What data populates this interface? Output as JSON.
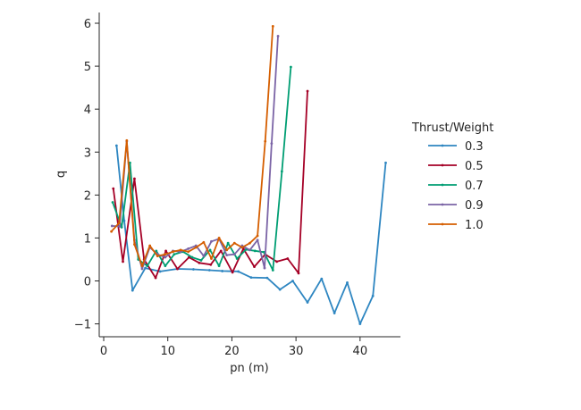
{
  "chart_data": {
    "type": "line",
    "xlabel": "pn (m)",
    "ylabel": "q",
    "xlim": [
      -0.7,
      46.3
    ],
    "ylim": [
      -1.3,
      6.25
    ],
    "xticks": [
      0,
      10,
      20,
      30,
      40
    ],
    "yticks": [
      -1,
      0,
      1,
      2,
      3,
      4,
      5,
      6
    ],
    "grid": false,
    "legend": {
      "title": "Thrust/Weight",
      "placement": "right"
    },
    "series": [
      {
        "name": "0.3",
        "color": "#2e86c1",
        "x": [
          2.0,
          3.2,
          4.5,
          6.5,
          8.8,
          11.5,
          14.0,
          16.5,
          18.5,
          21.0,
          23.0,
          25.5,
          27.5,
          29.5,
          31.8,
          34.0,
          36.0,
          38.0,
          40.0,
          42.0,
          44.0
        ],
        "y": [
          3.15,
          1.4,
          -0.22,
          0.3,
          0.22,
          0.28,
          0.27,
          0.25,
          0.23,
          0.22,
          0.08,
          0.07,
          -0.2,
          0.0,
          -0.5,
          0.05,
          -0.75,
          -0.04,
          -1.0,
          -0.35,
          2.75
        ]
      },
      {
        "name": "0.5",
        "color": "#a50026",
        "x": [
          1.5,
          3.0,
          4.8,
          6.3,
          8.1,
          9.7,
          11.5,
          13.3,
          14.9,
          16.7,
          18.3,
          20.1,
          21.8,
          23.5,
          25.2,
          27.0,
          28.7,
          30.4,
          31.8
        ],
        "y": [
          2.15,
          0.45,
          2.38,
          0.5,
          0.07,
          0.7,
          0.28,
          0.55,
          0.42,
          0.38,
          0.7,
          0.2,
          0.75,
          0.33,
          0.62,
          0.45,
          0.52,
          0.18,
          4.42
        ]
      },
      {
        "name": "0.7",
        "color": "#009e73",
        "x": [
          1.4,
          2.8,
          4.1,
          5.4,
          6.8,
          8.2,
          9.6,
          11.0,
          12.4,
          13.8,
          15.2,
          16.6,
          18.0,
          19.4,
          20.8,
          22.2,
          23.6,
          25.0,
          26.4,
          27.8,
          29.2
        ],
        "y": [
          1.83,
          1.25,
          2.75,
          0.5,
          0.35,
          0.7,
          0.35,
          0.62,
          0.68,
          0.55,
          0.48,
          0.72,
          0.35,
          0.88,
          0.52,
          0.73,
          0.7,
          0.67,
          0.25,
          2.55,
          4.98
        ]
      },
      {
        "name": "0.9",
        "color": "#7b64a6",
        "x": [
          1.3,
          2.5,
          3.6,
          4.8,
          6.0,
          7.2,
          8.4,
          9.6,
          10.8,
          12.0,
          13.2,
          14.4,
          15.6,
          16.8,
          18.0,
          19.2,
          20.4,
          21.6,
          22.8,
          24.0,
          25.1,
          26.2,
          27.2
        ],
        "y": [
          1.28,
          1.27,
          3.25,
          0.95,
          0.28,
          0.78,
          0.62,
          0.55,
          0.7,
          0.68,
          0.75,
          0.82,
          0.58,
          0.92,
          0.98,
          0.6,
          0.62,
          0.82,
          0.72,
          0.95,
          0.3,
          3.2,
          5.7
        ]
      },
      {
        "name": "1.0",
        "color": "#d55e00",
        "x": [
          1.2,
          2.4,
          3.6,
          4.8,
          6.0,
          7.2,
          8.4,
          9.6,
          10.8,
          12.0,
          13.2,
          14.4,
          15.6,
          16.8,
          18.0,
          19.2,
          20.4,
          21.6,
          22.8,
          24.0,
          25.2,
          26.4
        ],
        "y": [
          1.15,
          1.35,
          3.27,
          0.85,
          0.35,
          0.82,
          0.58,
          0.62,
          0.68,
          0.72,
          0.68,
          0.78,
          0.9,
          0.52,
          1.0,
          0.72,
          0.88,
          0.78,
          0.88,
          1.05,
          3.25,
          5.93
        ]
      }
    ]
  }
}
